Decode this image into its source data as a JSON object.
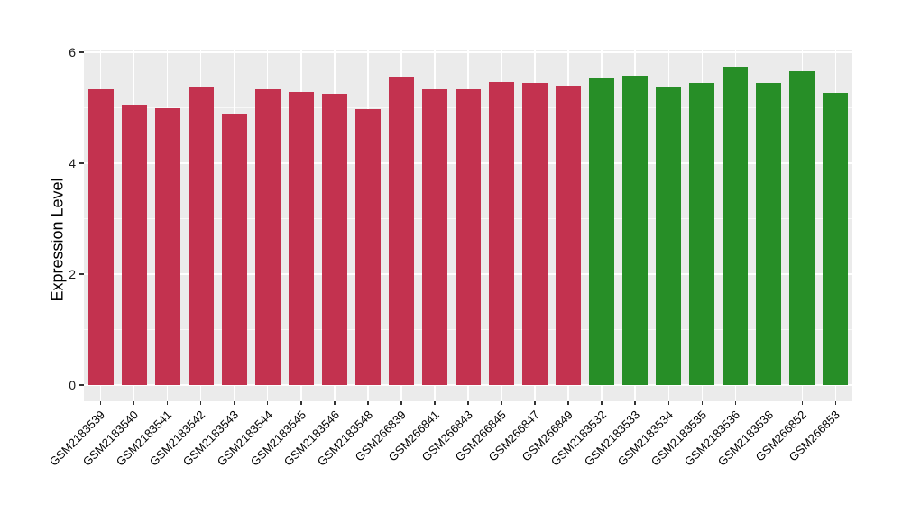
{
  "chart_data": {
    "type": "bar",
    "title": "",
    "xlabel": "",
    "ylabel": "Expression Level",
    "ylim": [
      0,
      6
    ],
    "yticks_major": [
      0,
      2,
      4,
      6
    ],
    "yticks_minor": [
      1,
      3,
      5
    ],
    "grid": "on",
    "legend_position": "none",
    "panel_background": "#EBEBEB",
    "grid_color": "#FFFFFF",
    "tick_color": "#333333",
    "categories": [
      "GSM2183539",
      "GSM2183540",
      "GSM2183541",
      "GSM2183542",
      "GSM2183543",
      "GSM2183544",
      "GSM2183545",
      "GSM2183546",
      "GSM2183548",
      "GSM266839",
      "GSM266841",
      "GSM266843",
      "GSM266845",
      "GSM266847",
      "GSM266849",
      "GSM2183532",
      "GSM2183533",
      "GSM2183534",
      "GSM2183535",
      "GSM2183536",
      "GSM2183538",
      "GSM266852",
      "GSM266853"
    ],
    "values": [
      5.33,
      5.05,
      5.0,
      5.37,
      4.89,
      5.34,
      5.28,
      5.26,
      4.98,
      5.56,
      5.33,
      5.33,
      5.46,
      5.45,
      5.4,
      5.55,
      5.58,
      5.38,
      5.45,
      5.74,
      5.44,
      5.66,
      5.27
    ],
    "groups": [
      "red",
      "red",
      "red",
      "red",
      "red",
      "red",
      "red",
      "red",
      "red",
      "red",
      "red",
      "red",
      "red",
      "red",
      "red",
      "green",
      "green",
      "green",
      "green",
      "green",
      "green",
      "green",
      "green"
    ],
    "group_colors": {
      "red": "#C3324F",
      "green": "#278E27"
    }
  }
}
